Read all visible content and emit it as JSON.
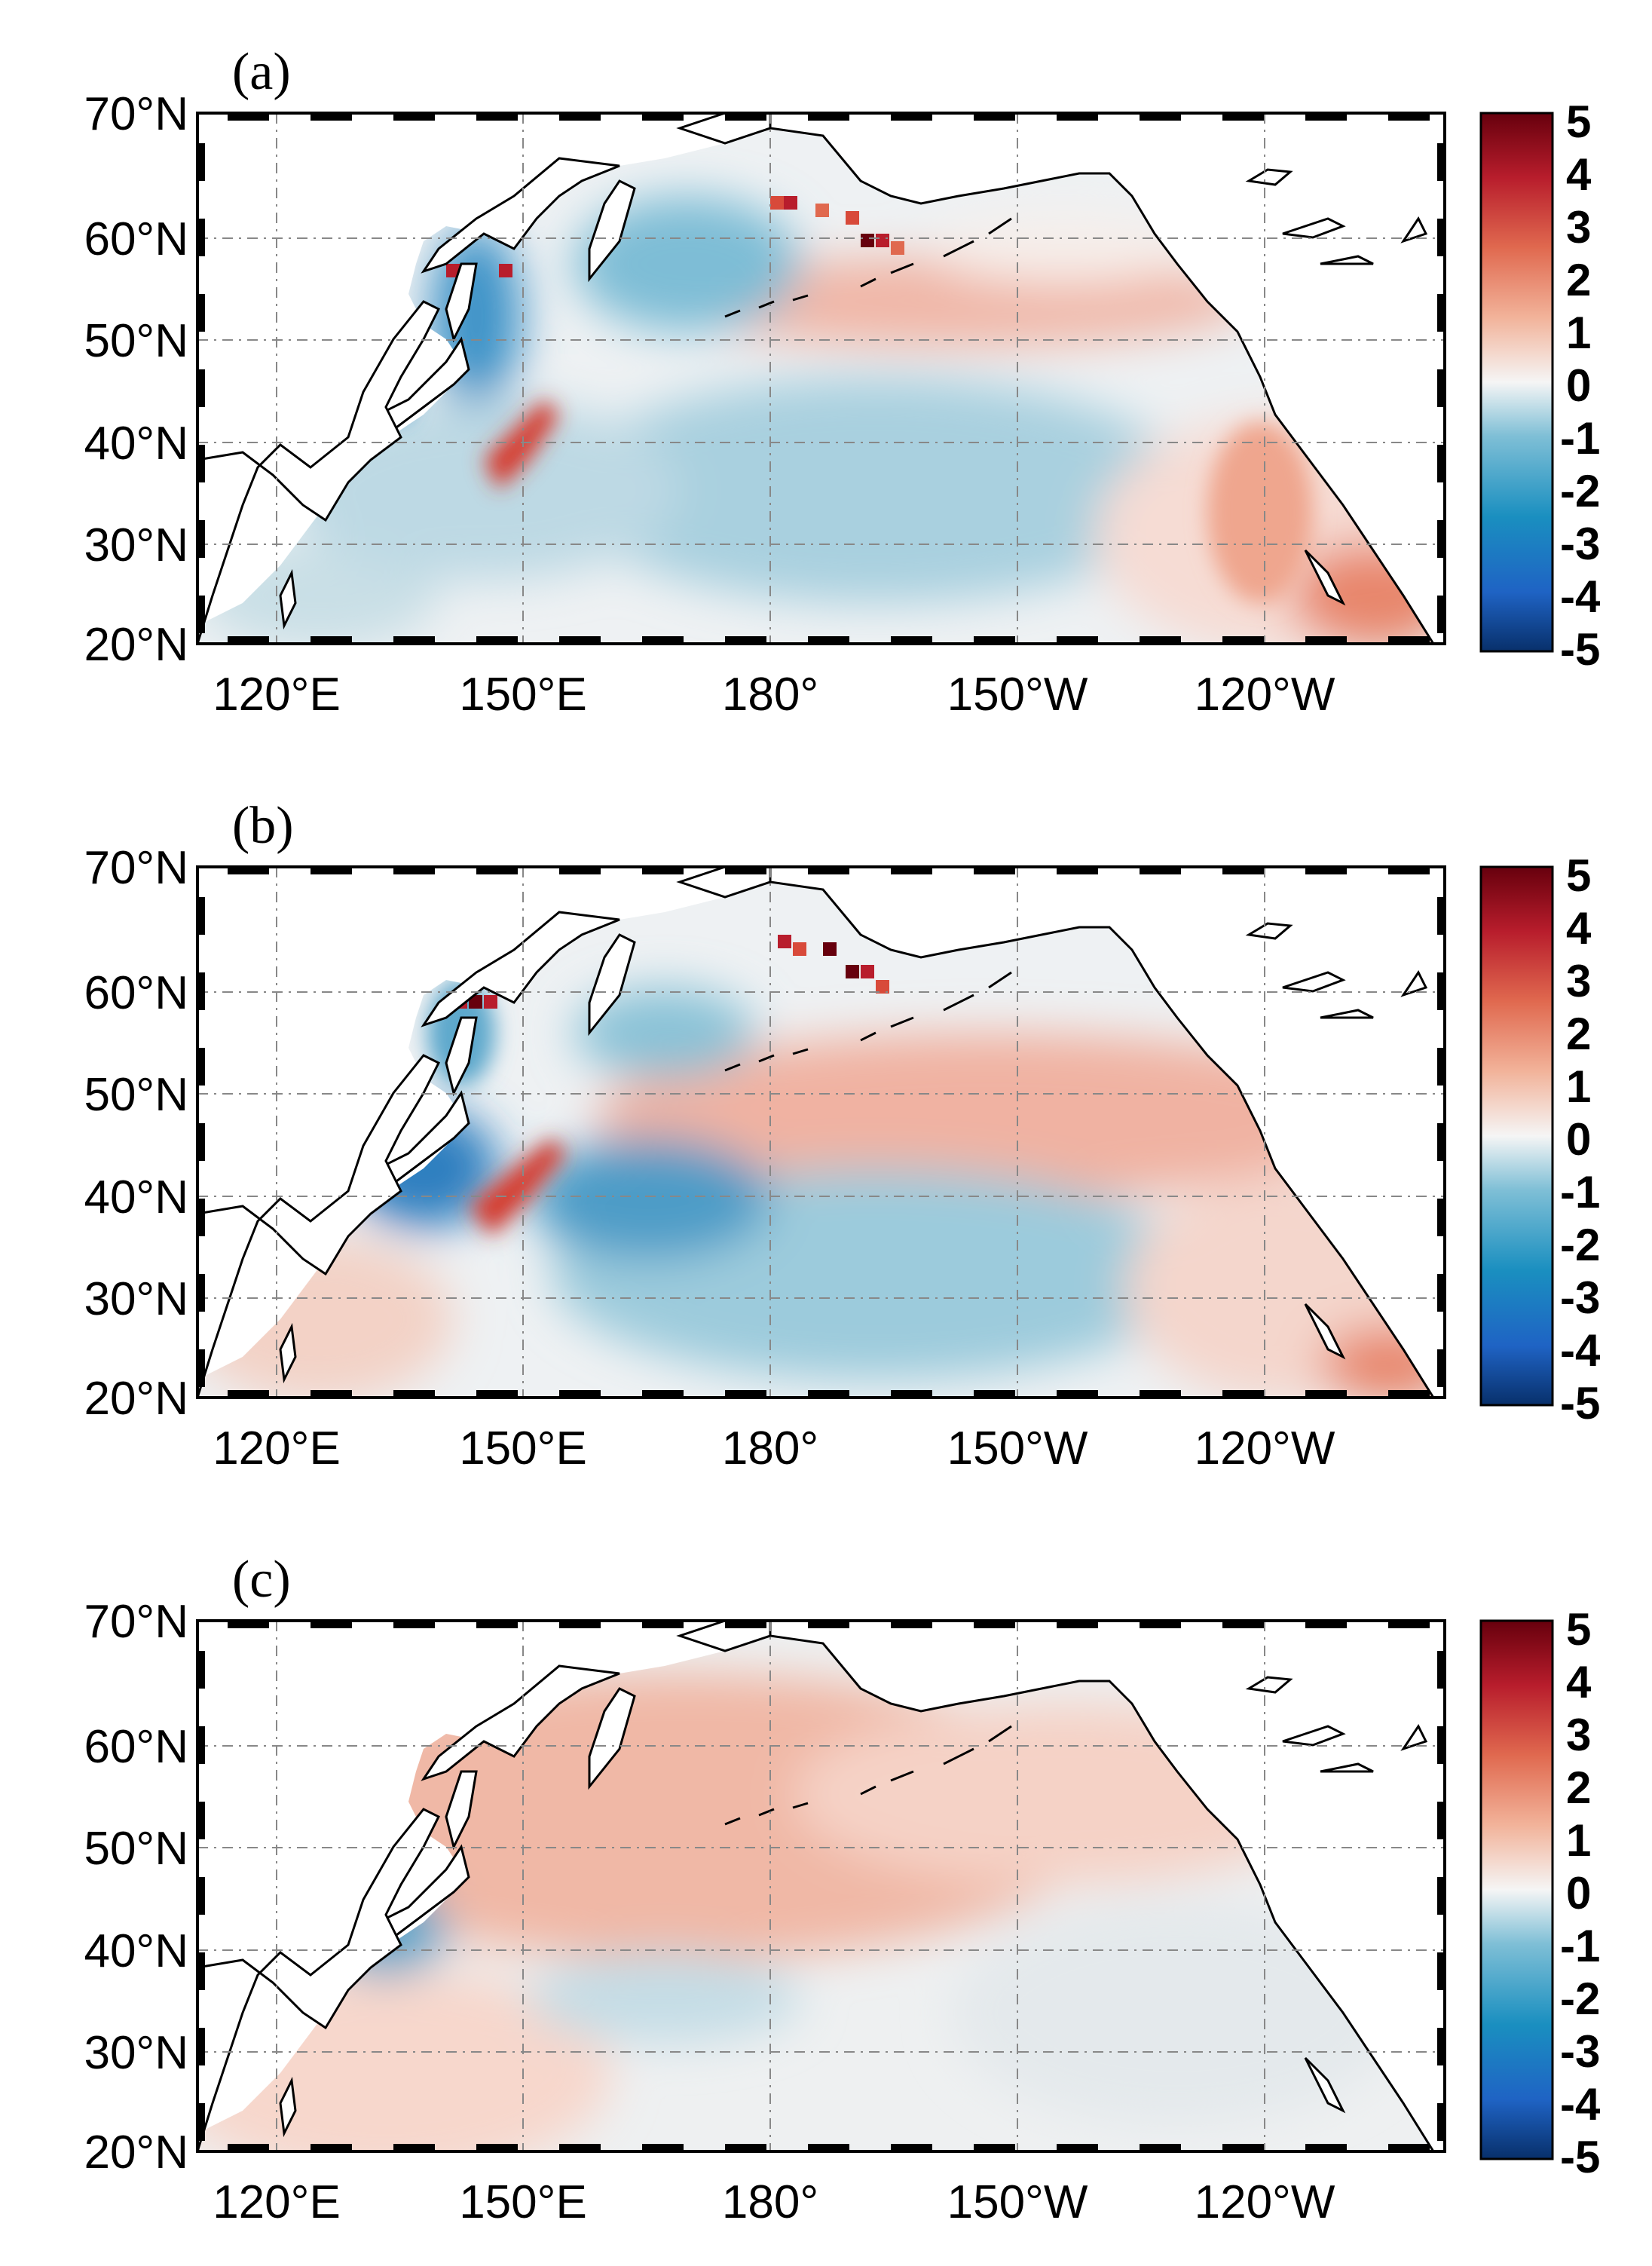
{
  "figure": {
    "panels": [
      {
        "label": "(a)"
      },
      {
        "label": "(b)"
      },
      {
        "label": "(c)"
      }
    ],
    "lat_ticks": [
      {
        "value": 70,
        "label": "70°N"
      },
      {
        "value": 60,
        "label": "60°N"
      },
      {
        "value": 50,
        "label": "50°N"
      },
      {
        "value": 40,
        "label": "40°N"
      },
      {
        "value": 30,
        "label": "30°N"
      },
      {
        "value": 20,
        "label": "20°N"
      }
    ],
    "lon_ticks": [
      {
        "value": 120,
        "label": "120°E"
      },
      {
        "value": 150,
        "label": "150°E"
      },
      {
        "value": 180,
        "label": "180°"
      },
      {
        "value": 210,
        "label": "150°W"
      },
      {
        "value": 240,
        "label": "120°W"
      }
    ],
    "colorbar": {
      "min": -5,
      "max": 5,
      "labels": [
        "5",
        "4",
        "3",
        "2",
        "1",
        "0",
        "-1",
        "-2",
        "-3",
        "-4",
        "-5"
      ],
      "colors": [
        "#08306b",
        "#1f63c4",
        "#1a8fc0",
        "#7fbfd6",
        "#f5f5f5",
        "#f2b39a",
        "#e0694f",
        "#b81d2c",
        "#67000d"
      ]
    },
    "colors": {
      "land": "#ffffff",
      "coast": "#000000",
      "frame": "#000000"
    }
  }
}
